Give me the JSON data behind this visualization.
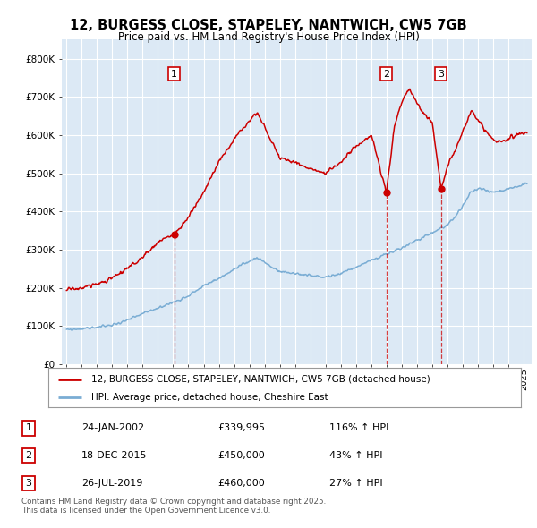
{
  "title": "12, BURGESS CLOSE, STAPELEY, NANTWICH, CW5 7GB",
  "subtitle": "Price paid vs. HM Land Registry's House Price Index (HPI)",
  "bg_color": "#dce9f5",
  "ylim": [
    0,
    850000
  ],
  "yticks": [
    0,
    100000,
    200000,
    300000,
    400000,
    500000,
    600000,
    700000,
    800000
  ],
  "ytick_labels": [
    "£0",
    "£100K",
    "£200K",
    "£300K",
    "£400K",
    "£500K",
    "£600K",
    "£700K",
    "£800K"
  ],
  "xlim_start": 1994.7,
  "xlim_end": 2025.5,
  "sale_dates": [
    2002.07,
    2015.97,
    2019.56
  ],
  "sale_prices": [
    339995,
    450000,
    460000
  ],
  "sale_labels": [
    "1",
    "2",
    "3"
  ],
  "sale_info": [
    {
      "num": "1",
      "date": "24-JAN-2002",
      "price": "£339,995",
      "hpi": "116% ↑ HPI"
    },
    {
      "num": "2",
      "date": "18-DEC-2015",
      "price": "£450,000",
      "hpi": "43% ↑ HPI"
    },
    {
      "num": "3",
      "date": "26-JUL-2019",
      "price": "£460,000",
      "hpi": "27% ↑ HPI"
    }
  ],
  "legend_line1": "12, BURGESS CLOSE, STAPELEY, NANTWICH, CW5 7GB (detached house)",
  "legend_line2": "HPI: Average price, detached house, Cheshire East",
  "footer": "Contains HM Land Registry data © Crown copyright and database right 2025.\nThis data is licensed under the Open Government Licence v3.0.",
  "red_color": "#cc0000",
  "blue_color": "#7aadd4",
  "red_anchors_x": [
    1995.0,
    1996.0,
    1997.0,
    1998.0,
    1999.0,
    2000.0,
    2001.0,
    2002.07,
    2003.0,
    2004.0,
    2005.0,
    2006.0,
    2007.0,
    2007.5,
    2008.0,
    2008.5,
    2009.0,
    2010.0,
    2011.0,
    2012.0,
    2013.0,
    2014.0,
    2015.0,
    2015.97,
    2016.5,
    2017.0,
    2017.5,
    2018.0,
    2019.0,
    2019.56,
    2020.0,
    2020.5,
    2021.0,
    2021.5,
    2022.0,
    2022.5,
    2023.0,
    2023.5,
    2024.0,
    2024.5,
    2025.2
  ],
  "red_anchors_y": [
    195000,
    200000,
    210000,
    225000,
    250000,
    280000,
    320000,
    339995,
    385000,
    450000,
    530000,
    590000,
    640000,
    660000,
    620000,
    580000,
    540000,
    530000,
    510000,
    500000,
    530000,
    570000,
    600000,
    450000,
    620000,
    690000,
    720000,
    680000,
    630000,
    460000,
    520000,
    560000,
    610000,
    660000,
    640000,
    610000,
    590000,
    580000,
    590000,
    600000,
    610000
  ],
  "blue_anchors_x": [
    1995.0,
    1996.0,
    1997.0,
    1998.0,
    1999.0,
    2000.0,
    2001.0,
    2002.0,
    2003.0,
    2004.0,
    2005.0,
    2006.0,
    2007.0,
    2007.5,
    2008.0,
    2008.5,
    2009.0,
    2010.0,
    2011.0,
    2012.0,
    2013.0,
    2014.0,
    2015.0,
    2016.0,
    2017.0,
    2018.0,
    2019.0,
    2019.56,
    2020.0,
    2020.5,
    2021.0,
    2021.5,
    2022.0,
    2022.5,
    2023.0,
    2023.5,
    2024.0,
    2024.5,
    2025.2
  ],
  "blue_anchors_y": [
    90000,
    93000,
    97000,
    103000,
    115000,
    132000,
    148000,
    162000,
    180000,
    205000,
    225000,
    248000,
    270000,
    280000,
    268000,
    253000,
    242000,
    238000,
    232000,
    228000,
    238000,
    255000,
    272000,
    288000,
    305000,
    325000,
    345000,
    357000,
    365000,
    385000,
    415000,
    450000,
    460000,
    455000,
    450000,
    455000,
    460000,
    465000,
    475000
  ]
}
